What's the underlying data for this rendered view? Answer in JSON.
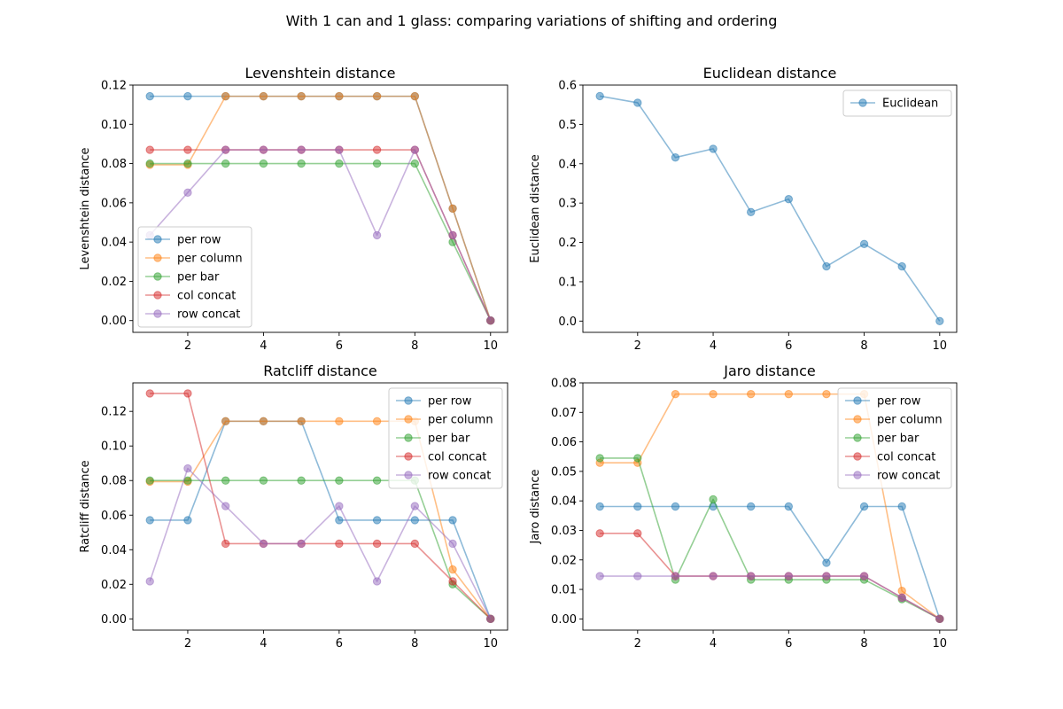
{
  "figure": {
    "suptitle": "With 1 can and 1 glass: comparing variations of shifting and ordering"
  },
  "colors": {
    "per row": "#1f77b4",
    "per column": "#ff7f0e",
    "per bar": "#2ca02c",
    "col concat": "#d62728",
    "row concat": "#9467bd",
    "Euclidean": "#1f77b4"
  },
  "chart_data": [
    {
      "type": "line",
      "title": "Levenshtein distance",
      "xlabel": "",
      "ylabel": "Levenshtein distance",
      "xlim": [
        0.55,
        10.45
      ],
      "ylim": [
        -0.006,
        0.12
      ],
      "xticks": [
        2,
        4,
        6,
        8,
        10
      ],
      "yticks": [
        0.0,
        0.02,
        0.04,
        0.06,
        0.08,
        0.1,
        0.12
      ],
      "ytick_labels": [
        "0.00",
        "0.02",
        "0.04",
        "0.06",
        "0.08",
        "0.10",
        "0.12"
      ],
      "grid": false,
      "legend": "lower-left",
      "x": [
        1,
        2,
        3,
        4,
        5,
        6,
        7,
        8,
        9,
        10
      ],
      "series": [
        {
          "name": "per row",
          "values": [
            0.1143,
            0.1143,
            0.1143,
            0.1143,
            0.1143,
            0.1143,
            0.1143,
            0.1143,
            0.0571,
            0.0
          ]
        },
        {
          "name": "per column",
          "values": [
            0.0794,
            0.0794,
            0.1143,
            0.1143,
            0.1143,
            0.1143,
            0.1143,
            0.1143,
            0.0571,
            0.0
          ]
        },
        {
          "name": "per bar",
          "values": [
            0.08,
            0.08,
            0.08,
            0.08,
            0.08,
            0.08,
            0.08,
            0.08,
            0.04,
            0.0
          ]
        },
        {
          "name": "col concat",
          "values": [
            0.087,
            0.087,
            0.087,
            0.087,
            0.087,
            0.087,
            0.087,
            0.087,
            0.0435,
            0.0
          ]
        },
        {
          "name": "row concat",
          "values": [
            0.0435,
            0.0652,
            0.087,
            0.087,
            0.087,
            0.087,
            0.0435,
            0.087,
            0.0435,
            0.0
          ]
        }
      ]
    },
    {
      "type": "line",
      "title": "Euclidean distance",
      "xlabel": "",
      "ylabel": "Euclidean distance",
      "xlim": [
        0.55,
        10.45
      ],
      "ylim": [
        -0.0286,
        0.6
      ],
      "xticks": [
        2,
        4,
        6,
        8,
        10
      ],
      "yticks": [
        0.0,
        0.1,
        0.2,
        0.3,
        0.4,
        0.5,
        0.6
      ],
      "ytick_labels": [
        "0.0",
        "0.1",
        "0.2",
        "0.3",
        "0.4",
        "0.5",
        "0.6"
      ],
      "grid": false,
      "legend": "upper-right",
      "x": [
        1,
        2,
        3,
        4,
        5,
        6,
        7,
        8,
        9,
        10
      ],
      "series": [
        {
          "name": "Euclidean",
          "values": [
            0.572,
            0.555,
            0.416,
            0.438,
            0.277,
            0.31,
            0.139,
            0.196,
            0.139,
            0.0
          ]
        }
      ]
    },
    {
      "type": "line",
      "title": "Ratcliff distance",
      "xlabel": "",
      "ylabel": "Ratcliff distance",
      "xlim": [
        0.55,
        10.45
      ],
      "ylim": [
        -0.0065,
        0.1365
      ],
      "xticks": [
        2,
        4,
        6,
        8,
        10
      ],
      "yticks": [
        0.0,
        0.02,
        0.04,
        0.06,
        0.08,
        0.1,
        0.12
      ],
      "ytick_labels": [
        "0.00",
        "0.02",
        "0.04",
        "0.06",
        "0.08",
        "0.10",
        "0.12"
      ],
      "grid": false,
      "legend": "upper-right",
      "x": [
        1,
        2,
        3,
        4,
        5,
        6,
        7,
        8,
        9,
        10
      ],
      "series": [
        {
          "name": "per row",
          "values": [
            0.0571,
            0.0571,
            0.1143,
            0.1143,
            0.1143,
            0.0571,
            0.0571,
            0.0571,
            0.0571,
            0.0
          ]
        },
        {
          "name": "per column",
          "values": [
            0.0794,
            0.0794,
            0.1143,
            0.1143,
            0.1143,
            0.1143,
            0.1143,
            0.1143,
            0.0286,
            0.0
          ]
        },
        {
          "name": "per bar",
          "values": [
            0.08,
            0.08,
            0.08,
            0.08,
            0.08,
            0.08,
            0.08,
            0.08,
            0.02,
            0.0
          ]
        },
        {
          "name": "col concat",
          "values": [
            0.1304,
            0.1304,
            0.0435,
            0.0435,
            0.0435,
            0.0435,
            0.0435,
            0.0435,
            0.0217,
            0.0
          ]
        },
        {
          "name": "row concat",
          "values": [
            0.0217,
            0.087,
            0.0652,
            0.0435,
            0.0435,
            0.0652,
            0.0217,
            0.0652,
            0.0435,
            0.0
          ]
        }
      ]
    },
    {
      "type": "line",
      "title": "Jaro distance",
      "xlabel": "",
      "ylabel": "Jaro distance",
      "xlim": [
        0.55,
        10.45
      ],
      "ylim": [
        -0.0038,
        0.08
      ],
      "xticks": [
        2,
        4,
        6,
        8,
        10
      ],
      "yticks": [
        0.0,
        0.01,
        0.02,
        0.03,
        0.04,
        0.05,
        0.06,
        0.07,
        0.08
      ],
      "ytick_labels": [
        "0.00",
        "0.01",
        "0.02",
        "0.03",
        "0.04",
        "0.05",
        "0.06",
        "0.07",
        "0.08"
      ],
      "grid": false,
      "legend": "upper-right",
      "x": [
        1,
        2,
        3,
        4,
        5,
        6,
        7,
        8,
        9,
        10
      ],
      "series": [
        {
          "name": "per row",
          "values": [
            0.0381,
            0.0381,
            0.0381,
            0.0381,
            0.0381,
            0.0381,
            0.019,
            0.0381,
            0.0381,
            0.0
          ]
        },
        {
          "name": "per column",
          "values": [
            0.0529,
            0.0529,
            0.0762,
            0.0762,
            0.0762,
            0.0762,
            0.0762,
            0.0762,
            0.0095,
            0.0
          ]
        },
        {
          "name": "per bar",
          "values": [
            0.0545,
            0.0545,
            0.0133,
            0.0405,
            0.0133,
            0.0133,
            0.0133,
            0.0133,
            0.0067,
            0.0
          ]
        },
        {
          "name": "col concat",
          "values": [
            0.029,
            0.029,
            0.0145,
            0.0145,
            0.0145,
            0.0145,
            0.0145,
            0.0145,
            0.0072,
            0.0
          ]
        },
        {
          "name": "row concat",
          "values": [
            0.0145,
            0.0145,
            0.0145,
            0.0145,
            0.0145,
            0.0145,
            0.0145,
            0.0145,
            0.0072,
            0.0
          ]
        }
      ]
    }
  ]
}
